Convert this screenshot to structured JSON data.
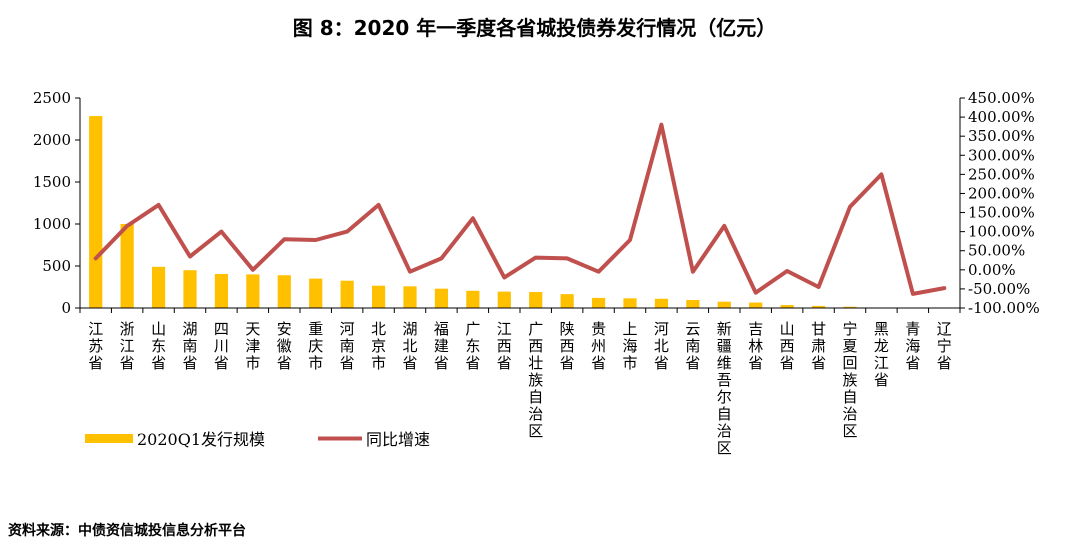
{
  "chart_data": {
    "type": "bar+line",
    "title": "图 8：2020 年一季度各省城投债券发行情况（亿元）",
    "categories": [
      "江苏省",
      "浙江省",
      "山东省",
      "湖南省",
      "四川省",
      "天津市",
      "安徽省",
      "重庆市",
      "河南省",
      "北京市",
      "湖北省",
      "福建省",
      "广东省",
      "江西省",
      "广西壮族自治区",
      "陕西省",
      "贵州省",
      "上海市",
      "河北省",
      "云南省",
      "新疆维吾尔自治区",
      "吉林省",
      "山西省",
      "甘肃省",
      "宁夏回族自治区",
      "黑龙江省",
      "青海省",
      "辽宁省"
    ],
    "series": [
      {
        "name": "2020Q1发行规模",
        "type": "bar",
        "axis": "left",
        "color": "#FFC000",
        "values": [
          2285,
          1000,
          490,
          450,
          405,
          400,
          390,
          350,
          325,
          265,
          258,
          230,
          205,
          195,
          190,
          165,
          120,
          115,
          110,
          95,
          75,
          65,
          35,
          25,
          15,
          3,
          0,
          0
        ]
      },
      {
        "name": "同比增速",
        "type": "line",
        "axis": "right",
        "color": "#C0504D",
        "unit": "%",
        "values": [
          30,
          115,
          170,
          35,
          100,
          0,
          80,
          78,
          100,
          170,
          -5,
          30,
          135,
          -20,
          32,
          30,
          -5,
          78,
          380,
          -5,
          115,
          -60,
          -3,
          -45,
          165,
          250,
          -63,
          -48
        ]
      }
    ],
    "left_axis": {
      "min": 0,
      "max": 2500,
      "ticks": [
        "0",
        "500",
        "1000",
        "1500",
        "2000",
        "2500"
      ]
    },
    "right_axis": {
      "min": -100,
      "max": 450,
      "ticks": [
        "-100.00%",
        "-50.00%",
        "0.00%",
        "50.00%",
        "100.00%",
        "150.00%",
        "200.00%",
        "250.00%",
        "300.00%",
        "350.00%",
        "400.00%",
        "450.00%"
      ]
    },
    "legend": {
      "placement": "bottom-left"
    },
    "grid": false
  },
  "source": "资料来源：中债资信城投信息分析平台"
}
